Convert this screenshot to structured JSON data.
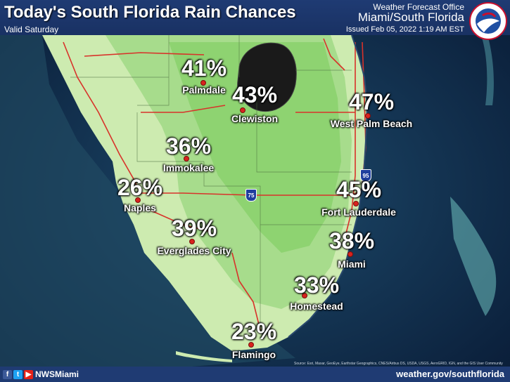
{
  "header": {
    "title": "Today's South Florida Rain Chances",
    "valid": "Valid Saturday",
    "office": "Weather Forecast Office",
    "region": "Miami/South Florida",
    "issued": "Issued Feb 05, 2022 1:19 AM EST"
  },
  "cities": [
    {
      "name": "Palmdale",
      "chance": "41%"
    },
    {
      "name": "Clewiston",
      "chance": "43%"
    },
    {
      "name": "West Palm Beach",
      "chance": "47%"
    },
    {
      "name": "Immokalee",
      "chance": "36%"
    },
    {
      "name": "Naples",
      "chance": "26%"
    },
    {
      "name": "Fort Lauderdale",
      "chance": "45%"
    },
    {
      "name": "Everglades City",
      "chance": "39%"
    },
    {
      "name": "Miami",
      "chance": "38%"
    },
    {
      "name": "Homestead",
      "chance": "33%"
    },
    {
      "name": "Flamingo",
      "chance": "23%"
    }
  ],
  "highways": [
    "95",
    "75"
  ],
  "footer": {
    "social_handle": "NWSMiami",
    "website": "weather.gov/southflorida",
    "credit": "Source: Esri, Maxar, GeoEye, Earthstar Geographics, CNES/Airbus DS, USDA, USGS, AeroGRID, IGN, and the GIS User Community"
  },
  "colors": {
    "header": "#1f3b73",
    "land_light": "#cdebb0",
    "land_mid": "#a7dc8c",
    "land_dark": "#8ed371",
    "water": "#10294a",
    "road": "#d8322a"
  }
}
